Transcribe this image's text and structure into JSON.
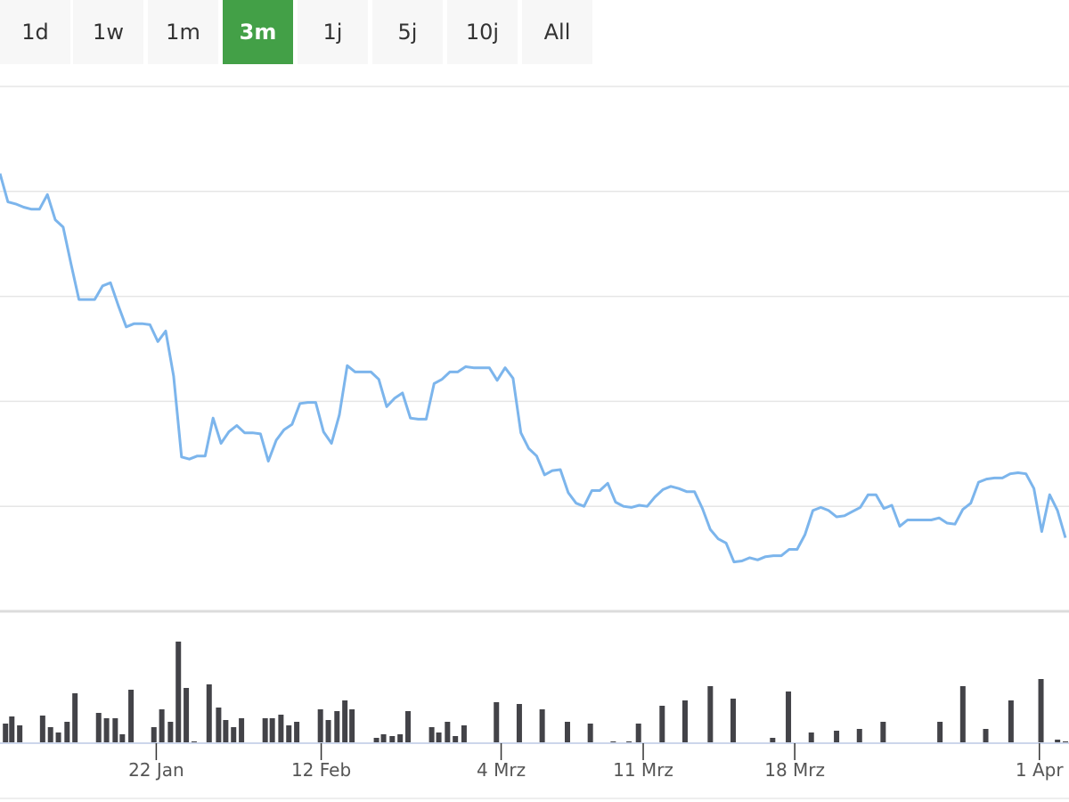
{
  "chart_data": {
    "type": "line",
    "range_selector": {
      "buttons": [
        "1d",
        "1w",
        "1m",
        "3m",
        "1j",
        "5j",
        "10j",
        "All"
      ],
      "selected": 3
    },
    "color": "#7cb5ec",
    "values": [
      417,
      390,
      388,
      385,
      383,
      383,
      397,
      373,
      366,
      331,
      297,
      297,
      297,
      310,
      313,
      291,
      271,
      274,
      274,
      273,
      257,
      267,
      224,
      147,
      145,
      148,
      148,
      184,
      160,
      171,
      177,
      170,
      170,
      169,
      143,
      163,
      173,
      178,
      198,
      199,
      199,
      171,
      160,
      187,
      234,
      228,
      228,
      228,
      221,
      195,
      203,
      208,
      184,
      183,
      183,
      217,
      221,
      228,
      228,
      233,
      232,
      232,
      232,
      220,
      232,
      222,
      170,
      155,
      148,
      130,
      134,
      135,
      113,
      103,
      100,
      115,
      115,
      122,
      104,
      100,
      99,
      101,
      100,
      109,
      116,
      119,
      117,
      114,
      114,
      98,
      78,
      69,
      65,
      47,
      48,
      51,
      49,
      52,
      53,
      53,
      59,
      59,
      73,
      96,
      99,
      96,
      90,
      91,
      95,
      99,
      111,
      111,
      98,
      101,
      81,
      87,
      87,
      87,
      87,
      89,
      84,
      83,
      97,
      103,
      123,
      126,
      127,
      127,
      131,
      132,
      131,
      117,
      76,
      111,
      96,
      70
    ],
    "xlim": [
      0,
      135
    ],
    "ylim": [
      0,
      500
    ],
    "ygrid": [
      0,
      100,
      200,
      300,
      400,
      500
    ],
    "xticks": [
      {
        "value": 19.8,
        "label": "22 Jan"
      },
      {
        "value": 40.7,
        "label": "12 Feb"
      },
      {
        "value": 63.5,
        "label": "4 Mrz"
      },
      {
        "value": 81.5,
        "label": "11 Mrz"
      },
      {
        "value": 100.7,
        "label": "18 Mrz"
      },
      {
        "value": 131.7,
        "label": "1 Apr"
      }
    ],
    "volume": {
      "type": "bar",
      "color": "#434348",
      "ylim": [
        0,
        130
      ],
      "x": [
        0.7,
        1.5,
        2.5,
        5.4,
        6.4,
        7.4,
        8.5,
        9.5,
        12.5,
        13.5,
        14.6,
        15.5,
        16.6,
        19.5,
        20.5,
        21.6,
        22.6,
        23.6,
        24.6,
        26.5,
        27.7,
        28.6,
        29.6,
        30.6,
        33.6,
        34.5,
        35.6,
        36.6,
        37.6,
        40.6,
        41.6,
        42.7,
        43.7,
        44.6,
        47.7,
        48.6,
        49.7,
        50.7,
        51.7,
        54.7,
        55.6,
        56.7,
        57.7,
        58.8,
        62.9,
        65.8,
        68.7,
        71.9,
        74.8,
        77.7,
        79.7,
        80.9,
        83.9,
        86.8,
        90.0,
        92.9,
        97.9,
        99.9,
        102.8,
        106.0,
        108.9,
        111.9,
        119.1,
        122.0,
        124.9,
        128.1,
        131.9,
        134.0,
        135.0
      ],
      "values": [
        21,
        29,
        19,
        30,
        17,
        11,
        23,
        55,
        33,
        27,
        27,
        9,
        59,
        17,
        37,
        23,
        113,
        61,
        1,
        65,
        39,
        25,
        17,
        27,
        27,
        27,
        31,
        19,
        23,
        37,
        25,
        35,
        47,
        37,
        5,
        9,
        7,
        9,
        35,
        17,
        11,
        23,
        7,
        19,
        45,
        43,
        37,
        23,
        21,
        1,
        1,
        21,
        41,
        47,
        63,
        49,
        5,
        57,
        11,
        13,
        15,
        23,
        23,
        63,
        15,
        47,
        71,
        3,
        1
      ]
    }
  }
}
